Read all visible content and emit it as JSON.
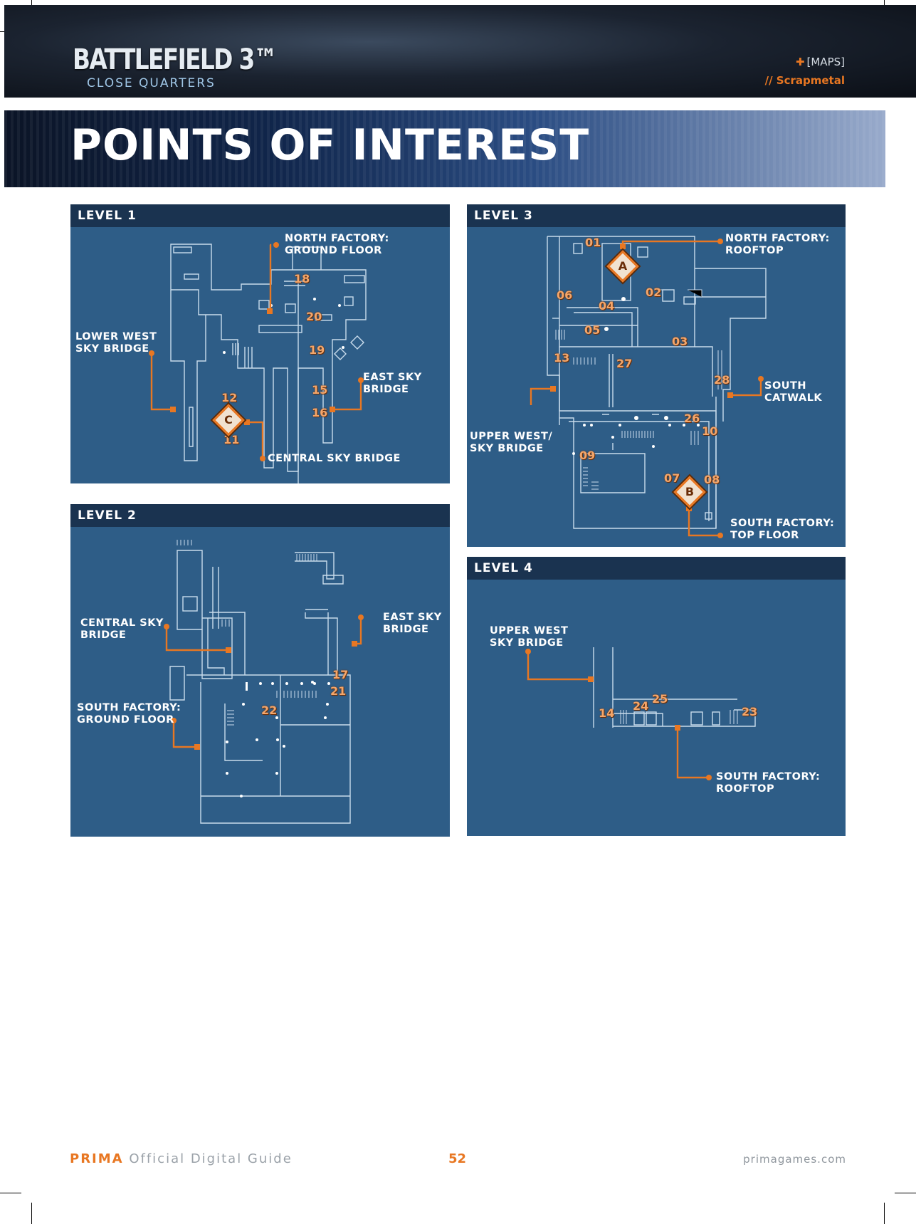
{
  "header": {
    "logo_main": "BATTLEFIELD 3™",
    "logo_sub": "CLOSE QUARTERS",
    "section": "[MAPS]",
    "map_name": "// Scrapmetal",
    "section_icon": "plus-icon"
  },
  "banner": {
    "title": "POINTS OF INTEREST"
  },
  "levels": [
    {
      "title": "LEVEL 1",
      "labels": [
        "NORTH FACTORY:\nGROUND FLOOR",
        "LOWER WEST\nSKY BRIDGE",
        "EAST SKY\nBRIDGE",
        "CENTRAL SKY BRIDGE"
      ],
      "points": [
        "18",
        "20",
        "19",
        "15",
        "12",
        "16",
        "11"
      ],
      "flag": "C"
    },
    {
      "title": "LEVEL 2",
      "labels": [
        "CENTRAL SKY\nBRIDGE",
        "EAST SKY\nBRIDGE",
        "SOUTH FACTORY:\nGROUND FLOOR"
      ],
      "points": [
        "17",
        "21",
        "22"
      ]
    },
    {
      "title": "LEVEL 3",
      "labels": [
        "NORTH FACTORY:\nROOFTOP",
        "SOUTH\nCATWALK",
        "UPPER WEST/\nSKY BRIDGE",
        "SOUTH FACTORY:\nTOP FLOOR"
      ],
      "points": [
        "01",
        "06",
        "02",
        "04",
        "05",
        "03",
        "13",
        "27",
        "28",
        "26",
        "10",
        "09",
        "07",
        "08"
      ],
      "flags": [
        "A",
        "B"
      ]
    },
    {
      "title": "LEVEL 4",
      "labels": [
        "UPPER WEST\nSKY BRIDGE",
        "SOUTH FACTORY:\nROOFTOP"
      ],
      "points": [
        "14",
        "24",
        "25",
        "23"
      ]
    }
  ],
  "footer": {
    "brand": "PRIMA",
    "guide": "Official Digital Guide",
    "page": "52",
    "site": "primagames.com"
  }
}
